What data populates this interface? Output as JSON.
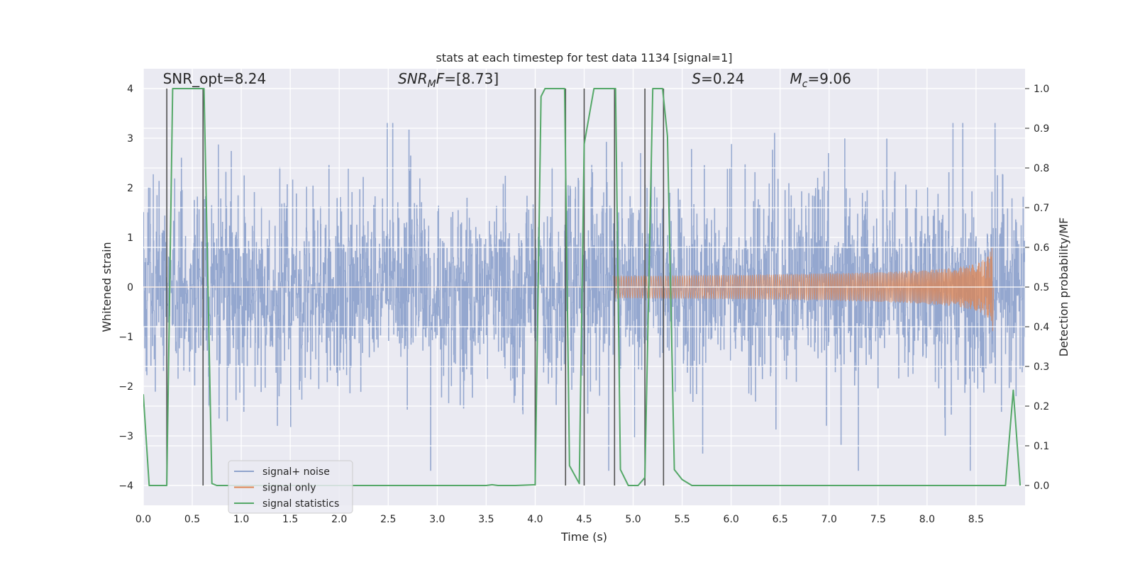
{
  "chart_data": {
    "type": "line",
    "title": "stats at each timestep for test data 1134 [signal=1]",
    "xlabel": "Time (s)",
    "ylabel": "Whitened strain",
    "ylabel_right": "Detection probability/MF",
    "xlim": [
      0.0,
      9.0
    ],
    "ylim": [
      -4.4,
      4.4
    ],
    "ylim_right": [
      -0.05,
      1.05
    ],
    "x_ticks": [
      0.0,
      0.5,
      1.0,
      1.5,
      2.0,
      2.5,
      3.0,
      3.5,
      4.0,
      4.5,
      5.0,
      5.5,
      6.0,
      6.5,
      7.0,
      7.5,
      8.0,
      8.5
    ],
    "x_tick_labels": [
      "0.0",
      "0.5",
      "1.0",
      "1.5",
      "2.0",
      "2.5",
      "3.0",
      "3.5",
      "4.0",
      "4.5",
      "5.0",
      "5.5",
      "6.0",
      "6.5",
      "7.0",
      "7.5",
      "8.0",
      "8.5"
    ],
    "y_ticks": [
      -4,
      -3,
      -2,
      -1,
      0,
      1,
      2,
      3,
      4
    ],
    "y_tick_labels": [
      "−4",
      "−3",
      "−2",
      "−1",
      "0",
      "1",
      "2",
      "3",
      "4"
    ],
    "y_ticks_right": [
      0.0,
      0.1,
      0.2,
      0.3,
      0.4,
      0.5,
      0.6,
      0.7,
      0.8,
      0.9,
      1.0
    ],
    "y_tick_labels_right": [
      "0.0",
      "0.1",
      "0.2",
      "0.3",
      "0.4",
      "0.5",
      "0.6",
      "0.7",
      "0.8",
      "0.9",
      "1.0"
    ],
    "annotations": [
      {
        "text": "SNR_opt=8.24",
        "x": 0.2,
        "y": 4.1
      },
      {
        "text": "SNR_MF=[8.73]",
        "x": 2.6,
        "y": 4.1
      },
      {
        "text": "S=0.24",
        "x": 5.6,
        "y": 4.1
      },
      {
        "text": "M_c=9.06",
        "x": 6.6,
        "y": 4.1
      }
    ],
    "annotation_display": {
      "snr_opt": "SNR_opt=8.24",
      "snr_mf_a": "SNR",
      "snr_mf_b": "M",
      "snr_mf_c": "F=[8.73]",
      "s_a": "S",
      "s_b": "=0.24",
      "mc_a": "M",
      "mc_b": "c",
      "mc_c": "=9.06"
    },
    "series": [
      {
        "name": "signal+ noise",
        "color": "#8fa3cc",
        "description": "noise-dominated whitened strain, amplitude mostly within about ±2, peaks near ±3.3",
        "amplitude_typical": 1.6,
        "amplitude_peak": 3.3,
        "x_range": [
          0.0,
          9.0
        ]
      },
      {
        "name": "signal only",
        "color": "#dd8452",
        "description": "chirp that grows in amplitude until merger",
        "x_start": 4.8,
        "x_merger": 8.67,
        "peak_amplitude": 0.95
      },
      {
        "name": "signal statistics",
        "color": "#55a868",
        "x": [
          0.0,
          0.06,
          0.24,
          0.3,
          0.62,
          0.7,
          0.75,
          3.5,
          3.56,
          3.62,
          3.8,
          4.0,
          4.06,
          4.1,
          4.3,
          4.35,
          4.45,
          4.5,
          4.6,
          4.82,
          4.87,
          4.95,
          5.05,
          5.12,
          5.2,
          5.3,
          5.35,
          5.42,
          5.5,
          5.6,
          8.8,
          8.88,
          8.95
        ],
        "y": [
          0.23,
          0.0,
          0.0,
          1.0,
          1.0,
          0.005,
          0.0,
          0.0,
          0.002,
          0.0,
          0.0,
          0.002,
          0.98,
          1.0,
          1.0,
          0.05,
          0.005,
          0.86,
          1.0,
          1.0,
          0.04,
          0.0,
          0.0,
          0.02,
          1.0,
          1.0,
          0.88,
          0.04,
          0.015,
          0.0,
          0.0,
          0.24,
          0.0
        ]
      }
    ],
    "vertical_markers": [
      {
        "x": 0.24,
        "y_bottom": -4.0,
        "y_top": 4.0
      },
      {
        "x": 0.61,
        "y_bottom": -4.0,
        "y_top": 4.0
      },
      {
        "x": 4.0,
        "y_bottom": -4.0,
        "y_top": 4.0
      },
      {
        "x": 4.31,
        "y_bottom": -4.0,
        "y_top": 4.0
      },
      {
        "x": 4.5,
        "y_bottom": -4.0,
        "y_top": 4.0
      },
      {
        "x": 4.81,
        "y_bottom": -4.0,
        "y_top": 4.0
      },
      {
        "x": 5.12,
        "y_bottom": -4.0,
        "y_top": 4.0
      },
      {
        "x": 5.31,
        "y_bottom": -4.0,
        "y_top": 4.0
      }
    ],
    "legend": {
      "position": "lower-left",
      "entries": [
        {
          "label": "signal+ noise",
          "color": "#8fa3cc"
        },
        {
          "label": "signal only",
          "color": "#dd8452"
        },
        {
          "label": "signal statistics",
          "color": "#55a868"
        }
      ]
    },
    "grid": true,
    "colors": {
      "axes_bg": "#eaeaf2",
      "grid": "#ffffff",
      "marker": "#505050"
    }
  }
}
